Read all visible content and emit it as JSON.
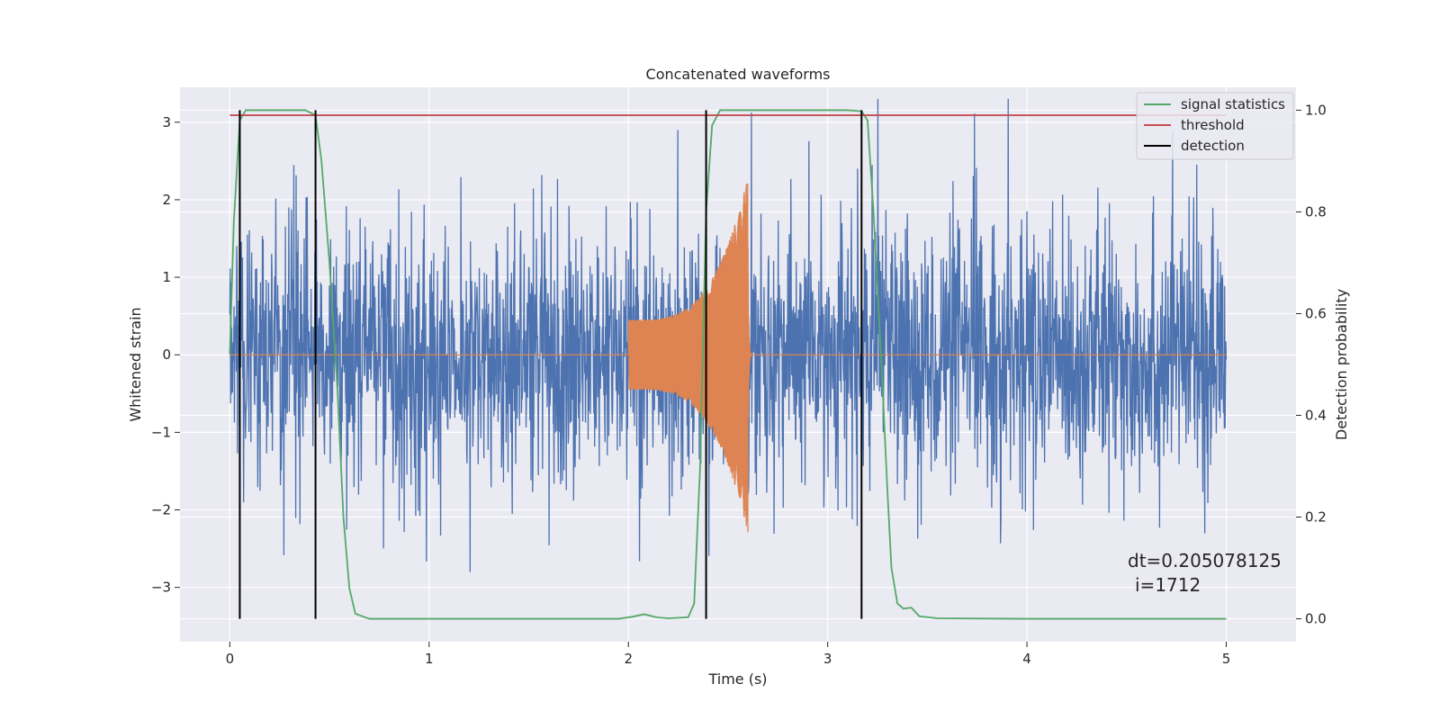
{
  "chart_data": {
    "type": "line",
    "title": "Concatenated waveforms",
    "xlabel": "Time (s)",
    "ylabel": "Whitened strain",
    "ylabel_right": "Detection probability",
    "xlim": [
      -0.25,
      5.35
    ],
    "ylim": [
      -3.7,
      3.45
    ],
    "ylim_right": [
      -0.045,
      1.045
    ],
    "x_ticks": [
      "0",
      "1",
      "2",
      "3",
      "4",
      "5"
    ],
    "y_ticks": [
      "3",
      "2",
      "1",
      "0",
      "−1",
      "−2",
      "−3"
    ],
    "y_ticks_right": [
      "1.0",
      "0.8",
      "0.6",
      "0.4",
      "0.2",
      "0.0"
    ],
    "grid": true,
    "legend_position": "top-right",
    "series": [
      {
        "name": "",
        "kind": "noise",
        "color": "#4c72b0",
        "x_range": [
          0,
          5
        ],
        "amplitude_typical": 0.75,
        "amplitude_max": 3.3
      },
      {
        "name": "",
        "kind": "chirp",
        "color": "#dd8452",
        "x_range": [
          0,
          5
        ],
        "chirp_start": 2.0,
        "chirp_peak": 2.6,
        "peak_amplitude": 2.3
      },
      {
        "name": "signal statistics",
        "axis": "right",
        "color": "#55a868",
        "points": [
          [
            0,
            0.52
          ],
          [
            0.02,
            0.78
          ],
          [
            0.05,
            0.98
          ],
          [
            0.08,
            1.0
          ],
          [
            0.38,
            1.0
          ],
          [
            0.43,
            0.99
          ],
          [
            0.46,
            0.9
          ],
          [
            0.5,
            0.7
          ],
          [
            0.54,
            0.45
          ],
          [
            0.57,
            0.2
          ],
          [
            0.6,
            0.06
          ],
          [
            0.63,
            0.01
          ],
          [
            0.7,
            0.0
          ],
          [
            1.0,
            0.0
          ],
          [
            1.5,
            0.0
          ],
          [
            1.95,
            0.0
          ],
          [
            2.02,
            0.004
          ],
          [
            2.08,
            0.009
          ],
          [
            2.14,
            0.003
          ],
          [
            2.2,
            0.001
          ],
          [
            2.3,
            0.003
          ],
          [
            2.33,
            0.03
          ],
          [
            2.36,
            0.3
          ],
          [
            2.39,
            0.8
          ],
          [
            2.42,
            0.97
          ],
          [
            2.46,
            1.0
          ],
          [
            3.1,
            1.0
          ],
          [
            3.17,
            0.998
          ],
          [
            3.2,
            0.98
          ],
          [
            3.23,
            0.8
          ],
          [
            3.27,
            0.5
          ],
          [
            3.3,
            0.25
          ],
          [
            3.32,
            0.1
          ],
          [
            3.35,
            0.03
          ],
          [
            3.38,
            0.02
          ],
          [
            3.42,
            0.022
          ],
          [
            3.46,
            0.005
          ],
          [
            3.55,
            0.001
          ],
          [
            4.0,
            0.0
          ],
          [
            5.0,
            0.0
          ]
        ]
      },
      {
        "name": "threshold",
        "axis": "right",
        "color": "#c44e52",
        "value": 0.99,
        "x_range": [
          0,
          5
        ]
      },
      {
        "name": "detection",
        "axis": "right",
        "color": "#000000",
        "x": [
          0.05,
          0.43,
          2.39,
          3.17
        ],
        "y_range": [
          0.0,
          1.0
        ]
      }
    ],
    "annotations": [
      "dt=0.205078125",
      "i=1712"
    ],
    "colors": {
      "axes_bg": "#eaeaf2",
      "grid": "#ffffff",
      "text": "#262626"
    }
  }
}
